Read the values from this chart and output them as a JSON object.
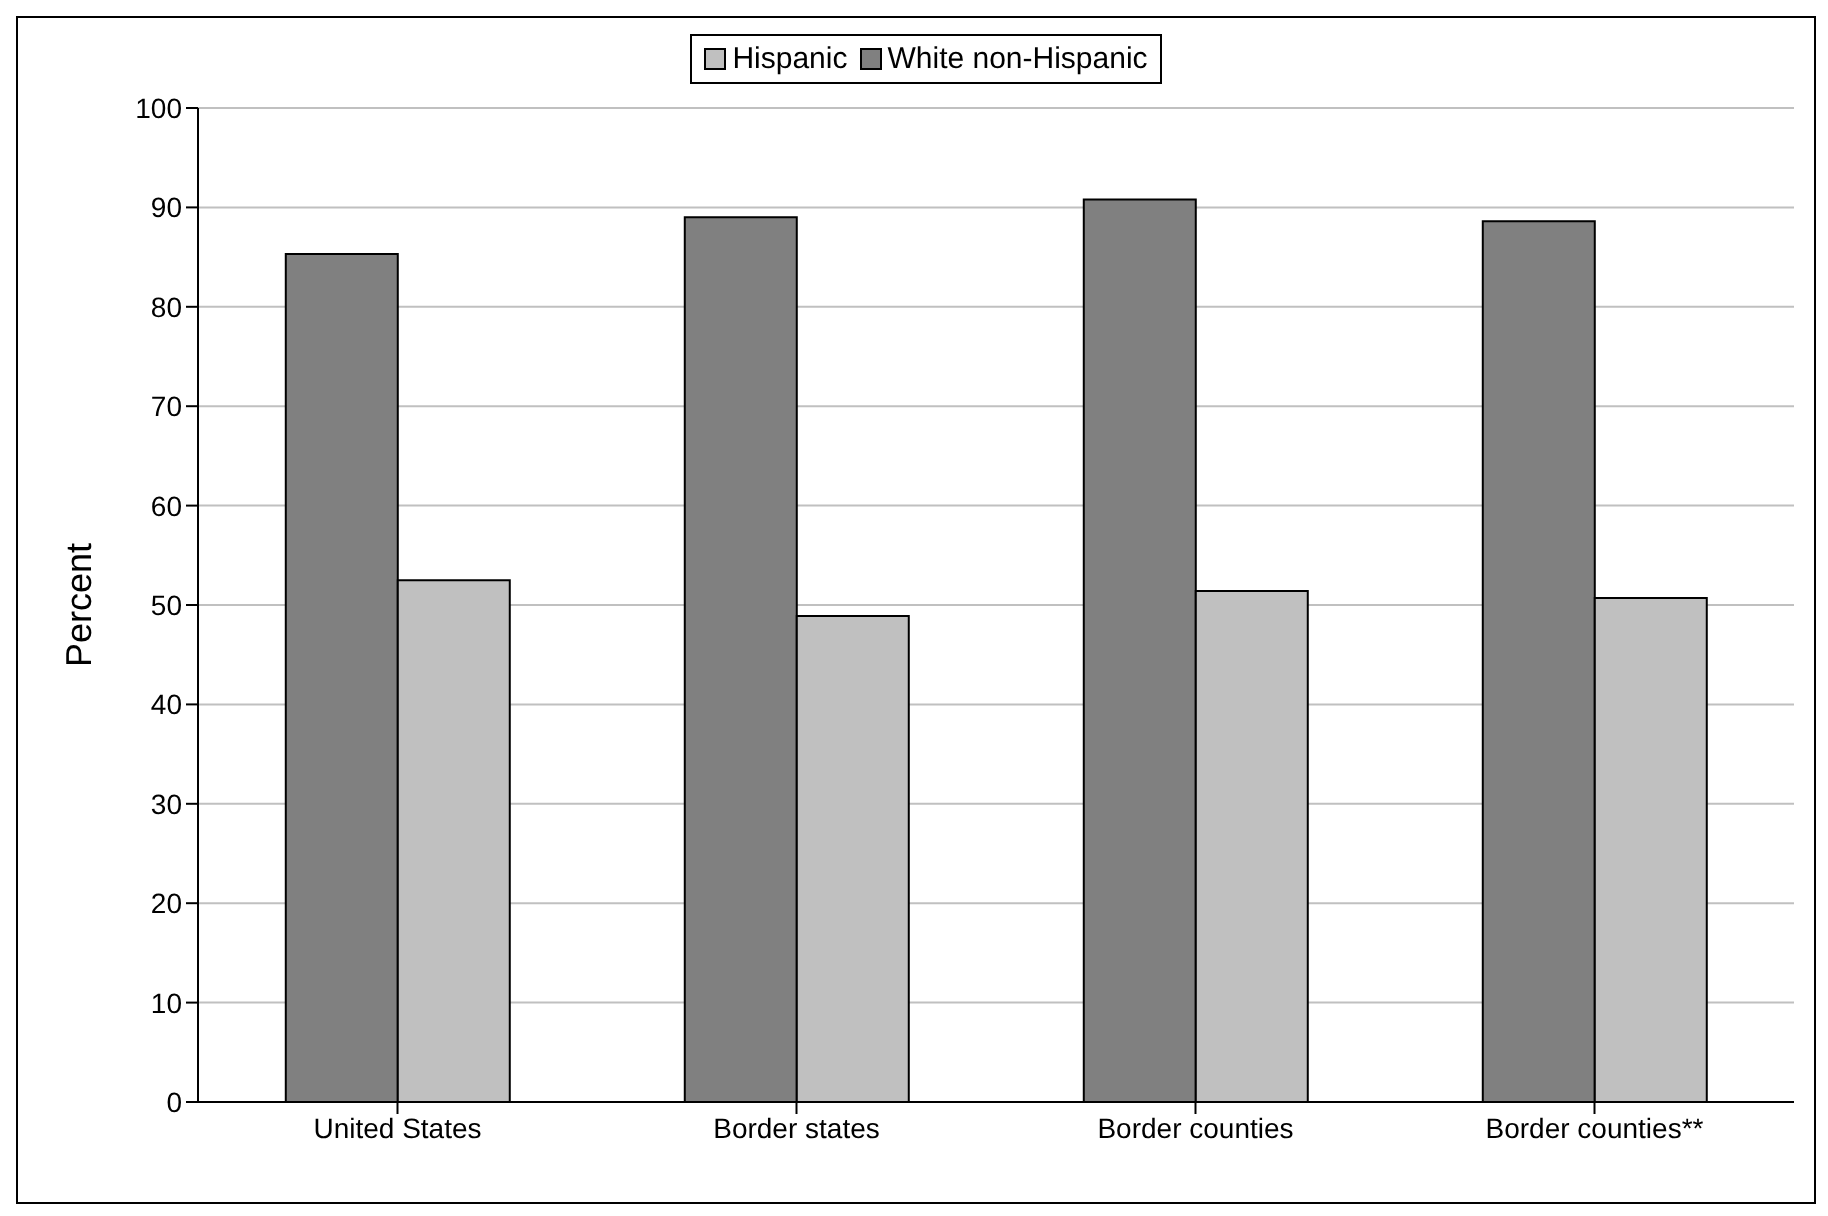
{
  "chart_data": {
    "type": "bar",
    "ylabel": "Percent",
    "categories": [
      "United States",
      "Border states",
      "Border counties",
      "Border counties**"
    ],
    "series": [
      {
        "name": "White non-Hispanic",
        "color": "#808080",
        "values": [
          85.3,
          89.0,
          90.8,
          88.6
        ]
      },
      {
        "name": "Hispanic",
        "color": "#c0c0c0",
        "values": [
          52.5,
          48.9,
          51.4,
          50.7
        ]
      }
    ],
    "ylim": [
      0,
      100
    ],
    "yticks": [
      0,
      10,
      20,
      30,
      40,
      50,
      60,
      70,
      80,
      90,
      100
    ],
    "grid": "y",
    "legend": "top"
  }
}
